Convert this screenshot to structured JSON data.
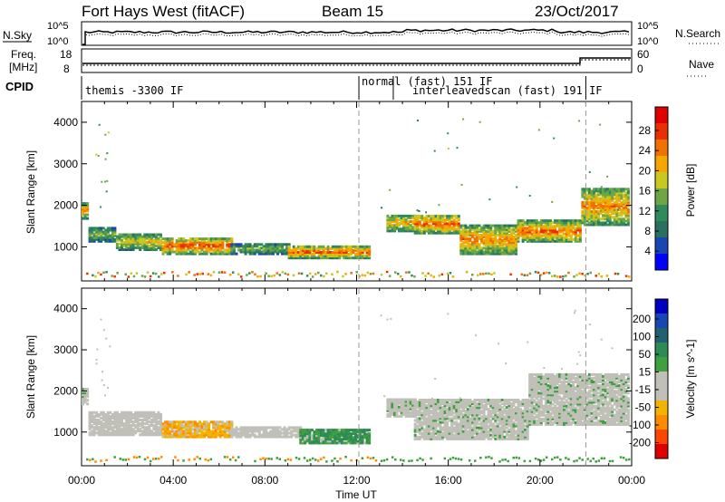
{
  "header": {
    "station": "Fort Hays West (fitACF)",
    "beam": "Beam 15",
    "date": "23/Oct/2017"
  },
  "strip": {
    "nsky_label": "N.Sky",
    "nsearch_label": "N.Search",
    "freq_label_1": "Freq.",
    "freq_label_2": "[MHz]",
    "nave_label": "Nave",
    "cpid_label": "CPID",
    "nsky_ticks": [
      "10^5",
      "10^0"
    ],
    "freq_ticks": [
      "18",
      "8"
    ],
    "nave_ticks": [
      "60",
      "0"
    ]
  },
  "cpid_modes": [
    {
      "label": "themis -3300 IF",
      "start_hr": 0,
      "end_hr": 12.1
    },
    {
      "label": "normal (fast) 151 IF",
      "start_hr": 12.1,
      "end_hr": 13.6
    },
    {
      "label": "interleavedscan (fast) 191 IF",
      "start_hr": 13.6,
      "end_hr": 22
    }
  ],
  "x_axis": {
    "label": "Time UT",
    "ticks": [
      "00:00",
      "04:00",
      "08:00",
      "12:00",
      "16:00",
      "20:00",
      "00:00"
    ]
  },
  "colors": {
    "power": [
      "#0000ff",
      "#1a46b3",
      "#2a7060",
      "#2f8b5c",
      "#6ea646",
      "#c8c81e",
      "#f5a700",
      "#f07000",
      "#e83000",
      "#e00000"
    ],
    "velocity": [
      "#e00000",
      "#ff4500",
      "#ff8c00",
      "#f2b400",
      "#c0c0b8",
      "#c0c0b8",
      "#40a040",
      "#2e8b57",
      "#206070",
      "#1a46b3",
      "#0000c0"
    ]
  },
  "power_panel": {
    "ylabel": "Slant Range [km]",
    "cbar_label": "Power [dB]",
    "cbar_ticks": [
      "28",
      "24",
      "20",
      "16",
      "12",
      "8",
      "4"
    ]
  },
  "velocity_panel": {
    "ylabel": "Slant Range [km]",
    "cbar_label": "Velocity [m s^-1]",
    "cbar_ticks": [
      "200",
      "100",
      "50",
      "15",
      "-15",
      "-50",
      "-100",
      "-200"
    ]
  },
  "chart_data": [
    {
      "type": "heatmap",
      "title": "Fort Hays West (fitACF) Beam 15 23/Oct/2017",
      "xlabel": "Time UT",
      "ylabel": "Slant Range [km]",
      "colorbar": "Power [dB]",
      "xlim_hours": [
        0,
        24
      ],
      "ylim": [
        180,
        4500
      ],
      "yticks": [
        1000,
        2000,
        3000,
        4000
      ],
      "clim": [
        0,
        30
      ],
      "echo_bands": [
        {
          "t0": 0.0,
          "t1": 0.3,
          "r_low": 1650,
          "r_high": 2050,
          "power": 22
        },
        {
          "t0": 0.3,
          "t1": 1.5,
          "r_low": 1100,
          "r_high": 1450,
          "power": 14
        },
        {
          "t0": 1.5,
          "t1": 3.5,
          "r_low": 900,
          "r_high": 1300,
          "power": 18
        },
        {
          "t0": 3.5,
          "t1": 6.5,
          "r_low": 800,
          "r_high": 1200,
          "power": 25
        },
        {
          "t0": 6.5,
          "t1": 9.0,
          "r_low": 800,
          "r_high": 1050,
          "power": 14
        },
        {
          "t0": 9.0,
          "t1": 12.5,
          "r_low": 700,
          "r_high": 1000,
          "power": 24
        },
        {
          "t0": 13.3,
          "t1": 14.5,
          "r_low": 1350,
          "r_high": 1750,
          "power": 20
        },
        {
          "t0": 14.5,
          "t1": 16.5,
          "r_low": 1300,
          "r_high": 1750,
          "power": 24
        },
        {
          "t0": 16.5,
          "t1": 19.0,
          "r_low": 800,
          "r_high": 1500,
          "power": 22
        },
        {
          "t0": 19.0,
          "t1": 21.8,
          "r_low": 1100,
          "r_high": 1600,
          "power": 24
        },
        {
          "t0": 21.8,
          "t1": 23.9,
          "r_low": 1500,
          "r_high": 2400,
          "power": 22
        }
      ]
    },
    {
      "type": "heatmap",
      "title": "",
      "xlabel": "Time UT",
      "ylabel": "Slant Range [km]",
      "colorbar": "Velocity [m s^-1]",
      "xlim_hours": [
        0,
        24
      ],
      "ylim": [
        180,
        4500
      ],
      "yticks": [
        1000,
        2000,
        3000,
        4000
      ],
      "clim": [
        -250,
        250
      ],
      "echo_bands": [
        {
          "t0": 0.0,
          "t1": 0.3,
          "r_low": 1650,
          "r_high": 2050,
          "velocity": 0
        },
        {
          "t0": 0.3,
          "t1": 3.5,
          "r_low": 900,
          "r_high": 1450,
          "velocity": -10
        },
        {
          "t0": 3.5,
          "t1": 6.5,
          "r_low": 850,
          "r_high": 1250,
          "velocity": -40
        },
        {
          "t0": 6.5,
          "t1": 9.5,
          "r_low": 850,
          "r_high": 1100,
          "velocity": -10
        },
        {
          "t0": 9.5,
          "t1": 12.5,
          "r_low": 700,
          "r_high": 1050,
          "velocity": 30
        },
        {
          "t0": 13.3,
          "t1": 14.5,
          "r_low": 1350,
          "r_high": 1800,
          "velocity": 0
        },
        {
          "t0": 14.5,
          "t1": 19.5,
          "r_low": 800,
          "r_high": 1750,
          "velocity": 0
        },
        {
          "t0": 19.5,
          "t1": 23.9,
          "r_low": 1150,
          "r_high": 2400,
          "velocity": 0
        }
      ]
    }
  ]
}
